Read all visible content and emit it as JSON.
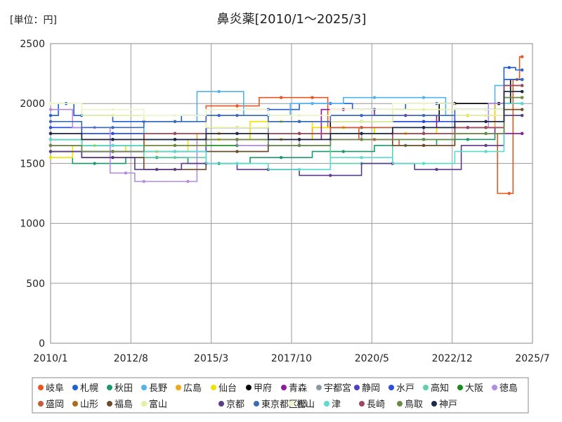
{
  "chart_data": {
    "type": "line",
    "title": "鼻炎薬[2010/1～2025/3]",
    "unit_label": "[単位：円]",
    "xlabel": "",
    "ylabel": "",
    "x_range": [
      "2010-01",
      "2025-07"
    ],
    "x_tick_labels": [
      "2010/1",
      "2012/8",
      "2015/3",
      "2017/10",
      "2020/5",
      "2022/12",
      "2025/7"
    ],
    "x_tick_values": [
      "2010-01",
      "2012-08",
      "2015-03",
      "2017-10",
      "2020-05",
      "2022-12",
      "2025-07"
    ],
    "ylim": [
      0,
      2500
    ],
    "y_ticks": [
      0,
      500,
      1000,
      1500,
      2000,
      2500
    ],
    "y_tick_labels": [
      "0",
      "500",
      "1000",
      "1500",
      "2000",
      "2500"
    ],
    "grid": true,
    "legend_position": "bottom",
    "series": [
      {
        "name": "岐阜",
        "color": "#e8561f",
        "x": [
          "2010-01",
          "2012-01",
          "2014-01",
          "2016-01",
          "2017-06",
          "2018-06",
          "2019-06",
          "2020-06",
          "2022-01",
          "2024-01",
          "2024-10",
          "2025-01",
          "2025-03"
        ],
        "y": [
          1750,
          1700,
          1750,
          1980,
          2050,
          2050,
          1800,
          1700,
          1650,
          1750,
          1250,
          2200,
          2390
        ]
      },
      {
        "name": "札幌",
        "color": "#1f5fd8",
        "x": [
          "2010-01",
          "2010-07",
          "2011-01",
          "2013-01",
          "2015-06",
          "2017-01",
          "2019-01",
          "2020-06",
          "2022-06",
          "2024-06",
          "2024-10",
          "2025-03"
        ],
        "y": [
          1900,
          2000,
          1900,
          1850,
          1900,
          1950,
          2000,
          1950,
          2000,
          2000,
          2300,
          2280
        ]
      },
      {
        "name": "秋田",
        "color": "#1a9a6a",
        "x": [
          "2010-01",
          "2011-06",
          "2013-06",
          "2015-06",
          "2017-06",
          "2019-06",
          "2021-06",
          "2023-06",
          "2025-03"
        ],
        "y": [
          1600,
          1500,
          1550,
          1500,
          1550,
          1600,
          1650,
          1700,
          1750
        ]
      },
      {
        "name": "長野",
        "color": "#4fb3ee",
        "x": [
          "2010-01",
          "2012-01",
          "2014-01",
          "2015-06",
          "2017-01",
          "2018-06",
          "2020-06",
          "2022-01",
          "2023-06",
          "2025-03"
        ],
        "y": [
          1800,
          1750,
          1850,
          2100,
          1900,
          2000,
          2050,
          2050,
          1900,
          2150
        ]
      },
      {
        "name": "広島",
        "color": "#f3a51c",
        "x": [
          "2010-01",
          "2012-01",
          "2014-01",
          "2015-06",
          "2017-06",
          "2019-06",
          "2021-06",
          "2023-06",
          "2025-03"
        ],
        "y": [
          1700,
          1600,
          1650,
          1750,
          1700,
          1800,
          1750,
          1800,
          2000
        ]
      },
      {
        "name": "仙台",
        "color": "#f2e200",
        "x": [
          "2010-01",
          "2011-06",
          "2013-06",
          "2015-06",
          "2017-06",
          "2019-06",
          "2021-06",
          "2023-06",
          "2025-03"
        ],
        "y": [
          1550,
          1650,
          1600,
          1700,
          1850,
          1800,
          1750,
          1900,
          1950
        ]
      },
      {
        "name": "甲府",
        "color": "#000000",
        "x": [
          "2010-01",
          "2012-01",
          "2014-01",
          "2016-01",
          "2018-01",
          "2020-01",
          "2022-01",
          "2023-01",
          "2024-06",
          "2025-03"
        ],
        "y": [
          1700,
          1650,
          1700,
          1800,
          1750,
          1850,
          1850,
          2000,
          2000,
          2200
        ]
      },
      {
        "name": "青森",
        "color": "#8e1a9e",
        "x": [
          "2010-01",
          "2012-01",
          "2014-01",
          "2016-01",
          "2018-01",
          "2019-06",
          "2021-06",
          "2023-06",
          "2025-03"
        ],
        "y": [
          1650,
          1600,
          1700,
          1750,
          1700,
          1950,
          1900,
          1800,
          1750
        ]
      },
      {
        "name": "宇都宮",
        "color": "#8c99a5",
        "x": [
          "2010-01",
          "2012-01",
          "2014-01",
          "2016-01",
          "2018-01",
          "2020-01",
          "2022-01",
          "2024-01",
          "2025-03"
        ],
        "y": [
          1700,
          1750,
          1700,
          1800,
          1750,
          1750,
          1800,
          1850,
          2100
        ]
      },
      {
        "name": "静岡",
        "color": "#4c3fc7",
        "x": [
          "2010-01",
          "2012-01",
          "2014-01",
          "2016-01",
          "2018-01",
          "2020-01",
          "2022-01",
          "2024-01",
          "2025-03"
        ],
        "y": [
          1650,
          1600,
          1600,
          1700,
          1650,
          1800,
          1750,
          1800,
          2000
        ]
      },
      {
        "name": "水戸",
        "color": "#2b4de0",
        "x": [
          "2010-01",
          "2012-01",
          "2014-01",
          "2016-01",
          "2018-01",
          "2020-01",
          "2022-01",
          "2024-01",
          "2025-03"
        ],
        "y": [
          1800,
          1750,
          1700,
          1800,
          1850,
          1900,
          1850,
          1950,
          2200
        ]
      },
      {
        "name": "高知",
        "color": "#5fd0a5",
        "x": [
          "2010-01",
          "2012-01",
          "2014-01",
          "2016-01",
          "2018-01",
          "2020-01",
          "2022-01",
          "2024-01",
          "2025-03"
        ],
        "y": [
          1600,
          1650,
          1550,
          1600,
          1650,
          1500,
          1700,
          1750,
          1900
        ]
      },
      {
        "name": "大阪",
        "color": "#1a8a1a",
        "x": [
          "2010-01",
          "2012-01",
          "2014-01",
          "2016-01",
          "2018-01",
          "2020-01",
          "2022-01",
          "2024-01",
          "2025-03"
        ],
        "y": [
          1700,
          1650,
          1700,
          1650,
          1700,
          1750,
          1700,
          1800,
          2100
        ]
      },
      {
        "name": "徳島",
        "color": "#b48be0",
        "x": [
          "2010-01",
          "2011-06",
          "2012-06",
          "2013-01",
          "2014-06",
          "2015-01",
          "2017-01",
          "2019-01",
          "2021-01",
          "2023-01",
          "2025-03"
        ],
        "y": [
          1950,
          1800,
          1420,
          1350,
          1350,
          1700,
          1650,
          1700,
          1750,
          1800,
          2000
        ]
      },
      {
        "name": "盛岡",
        "color": "#c75a35",
        "x": [
          "2010-01",
          "2012-01",
          "2014-01",
          "2016-01",
          "2018-01",
          "2020-01",
          "2022-01",
          "2024-01",
          "2025-03"
        ],
        "y": [
          1750,
          1700,
          1750,
          1700,
          1750,
          1800,
          1750,
          1850,
          2150
        ]
      },
      {
        "name": "山形",
        "color": "#b06a1a",
        "x": [
          "2010-01",
          "2012-01",
          "2014-01",
          "2016-01",
          "2018-01",
          "2020-01",
          "2022-01",
          "2024-01",
          "2025-03"
        ],
        "y": [
          1650,
          1700,
          1650,
          1750,
          1700,
          1750,
          1800,
          1800,
          2050
        ]
      },
      {
        "name": "福島",
        "color": "#6e4a2a",
        "x": [
          "2010-01",
          "2012-01",
          "2014-01",
          "2016-01",
          "2018-01",
          "2020-01",
          "2022-01",
          "2024-01",
          "2025-03"
        ],
        "y": [
          1600,
          1550,
          1450,
          1600,
          1650,
          1700,
          1650,
          1750,
          1950
        ]
      },
      {
        "name": "富山",
        "color": "#e4f0a0",
        "x": [
          "2010-01",
          "2012-01",
          "2014-01",
          "2016-01",
          "2018-01",
          "2020-01",
          "2022-01",
          "2024-01",
          "2025-03"
        ],
        "y": [
          2000,
          1900,
          1850,
          1800,
          1900,
          1850,
          1950,
          1900,
          2050
        ]
      },
      {
        "name": "京都",
        "color": "#5a3a8a",
        "x": [
          "2010-01",
          "2012-01",
          "2013-06",
          "2015-01",
          "2017-01",
          "2019-01",
          "2021-01",
          "2022-06",
          "2024-01",
          "2025-03"
        ],
        "y": [
          1600,
          1550,
          1450,
          1500,
          1450,
          1400,
          1500,
          1450,
          1650,
          1900
        ]
      },
      {
        "name": "東京都区部",
        "color": "#3a6ab8",
        "x": [
          "2010-01",
          "2012-01",
          "2014-01",
          "2016-01",
          "2018-01",
          "2020-01",
          "2022-01",
          "2024-01",
          "2025-03"
        ],
        "y": [
          1850,
          1800,
          1850,
          1900,
          1850,
          1900,
          1900,
          1950,
          2200
        ]
      },
      {
        "name": "松山",
        "color": "#eef6c8",
        "x": [
          "2010-01",
          "2012-01",
          "2014-01",
          "2016-01",
          "2018-01",
          "2020-01",
          "2022-01",
          "2024-01",
          "2025-03"
        ],
        "y": [
          2000,
          1950,
          1900,
          1950,
          1900,
          1950,
          2000,
          1950,
          2100
        ]
      },
      {
        "name": "津",
        "color": "#58dcd0",
        "x": [
          "2010-01",
          "2012-01",
          "2014-01",
          "2016-01",
          "2018-01",
          "2020-01",
          "2022-01",
          "2024-01",
          "2025-03"
        ],
        "y": [
          1700,
          1650,
          1600,
          1500,
          1450,
          1550,
          1500,
          1600,
          2000
        ]
      },
      {
        "name": "長崎",
        "color": "#9a4a5a",
        "x": [
          "2010-01",
          "2012-01",
          "2014-01",
          "2016-01",
          "2018-01",
          "2020-01",
          "2022-01",
          "2024-01",
          "2025-03"
        ],
        "y": [
          1750,
          1700,
          1750,
          1700,
          1750,
          1700,
          1750,
          1800,
          2150
        ]
      },
      {
        "name": "鳥取",
        "color": "#6a8a4a",
        "x": [
          "2010-01",
          "2012-01",
          "2014-01",
          "2016-01",
          "2018-01",
          "2020-01",
          "2022-01",
          "2024-01",
          "2025-03"
        ],
        "y": [
          1650,
          1600,
          1650,
          1700,
          1650,
          1700,
          1700,
          1750,
          2050
        ]
      },
      {
        "name": "神戸",
        "color": "#1a2a4a",
        "x": [
          "2010-01",
          "2012-01",
          "2014-01",
          "2016-01",
          "2018-01",
          "2020-01",
          "2022-01",
          "2024-01",
          "2025-03"
        ],
        "y": [
          1750,
          1700,
          1700,
          1750,
          1700,
          1750,
          1800,
          1850,
          2100
        ]
      }
    ]
  }
}
